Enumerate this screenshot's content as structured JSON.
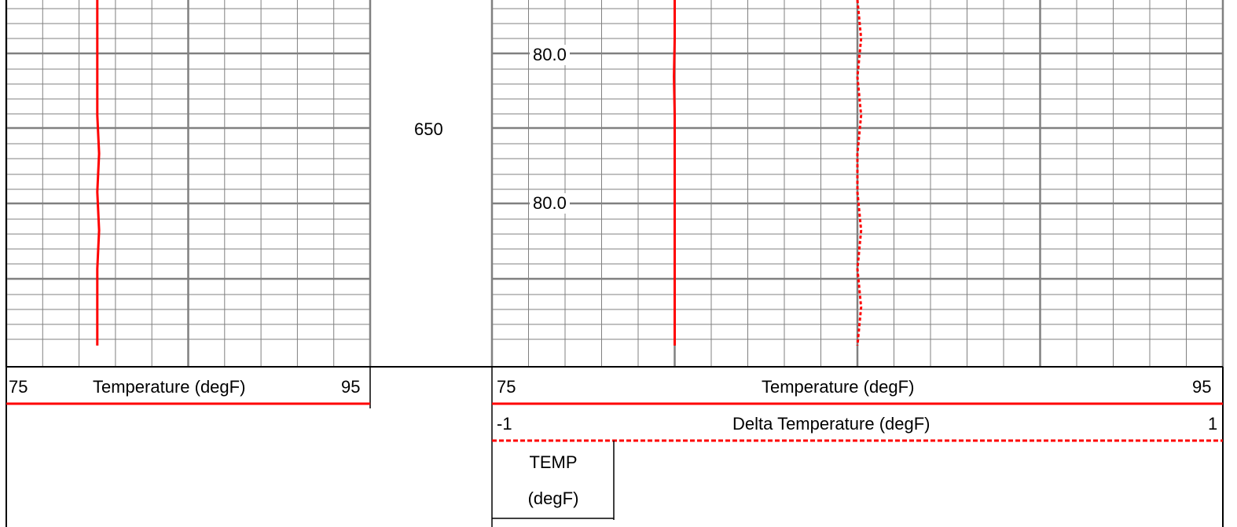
{
  "depth_track": {
    "depth_label": "650"
  },
  "track_labels": {
    "annotation_upper": "80.0",
    "annotation_lower": "80.0"
  },
  "headers": {
    "left_temp": {
      "min": "75",
      "title": "Temperature (degF)",
      "max": "95",
      "color": "#ff0000"
    },
    "right_temp": {
      "min": "75",
      "title": "Temperature (degF)",
      "max": "95",
      "color": "#ff0000"
    },
    "right_delta": {
      "min": "-1",
      "title": "Delta Temperature (degF)",
      "max": "1",
      "color": "#ff0000"
    },
    "value_column": {
      "line1": "TEMP",
      "line2": "(degF)"
    }
  },
  "colors": {
    "grid_major": "#808080",
    "grid_minor": "#808080",
    "curve": "#ff0000"
  },
  "chart_data": [
    {
      "type": "line",
      "title": "",
      "xlabel": "Temperature (degF)",
      "xlim": [
        75,
        95
      ],
      "series": [
        {
          "values": [
            80.0,
            80.0,
            80.0,
            80.0,
            80.1,
            80.0,
            80.1,
            80.0,
            80.0,
            80.0
          ]
        }
      ]
    },
    {
      "type": "line",
      "title": "",
      "xlabel": "Temperature (degF)",
      "xlim": [
        75,
        95
      ],
      "series": [
        {
          "values": [
            80.0,
            80.0,
            79.98,
            80.0,
            80.0,
            80.0,
            80.0,
            80.0,
            80.0,
            80.0
          ]
        }
      ]
    },
    {
      "type": "line",
      "title": "",
      "xlabel": "Delta Temperature (degF)",
      "xlim": [
        -1,
        1
      ],
      "series": [
        {
          "values": [
            0.0,
            0.01,
            0.0,
            0.01,
            0.0,
            0.0,
            0.01,
            0.0,
            0.01,
            0.0
          ]
        }
      ]
    }
  ]
}
